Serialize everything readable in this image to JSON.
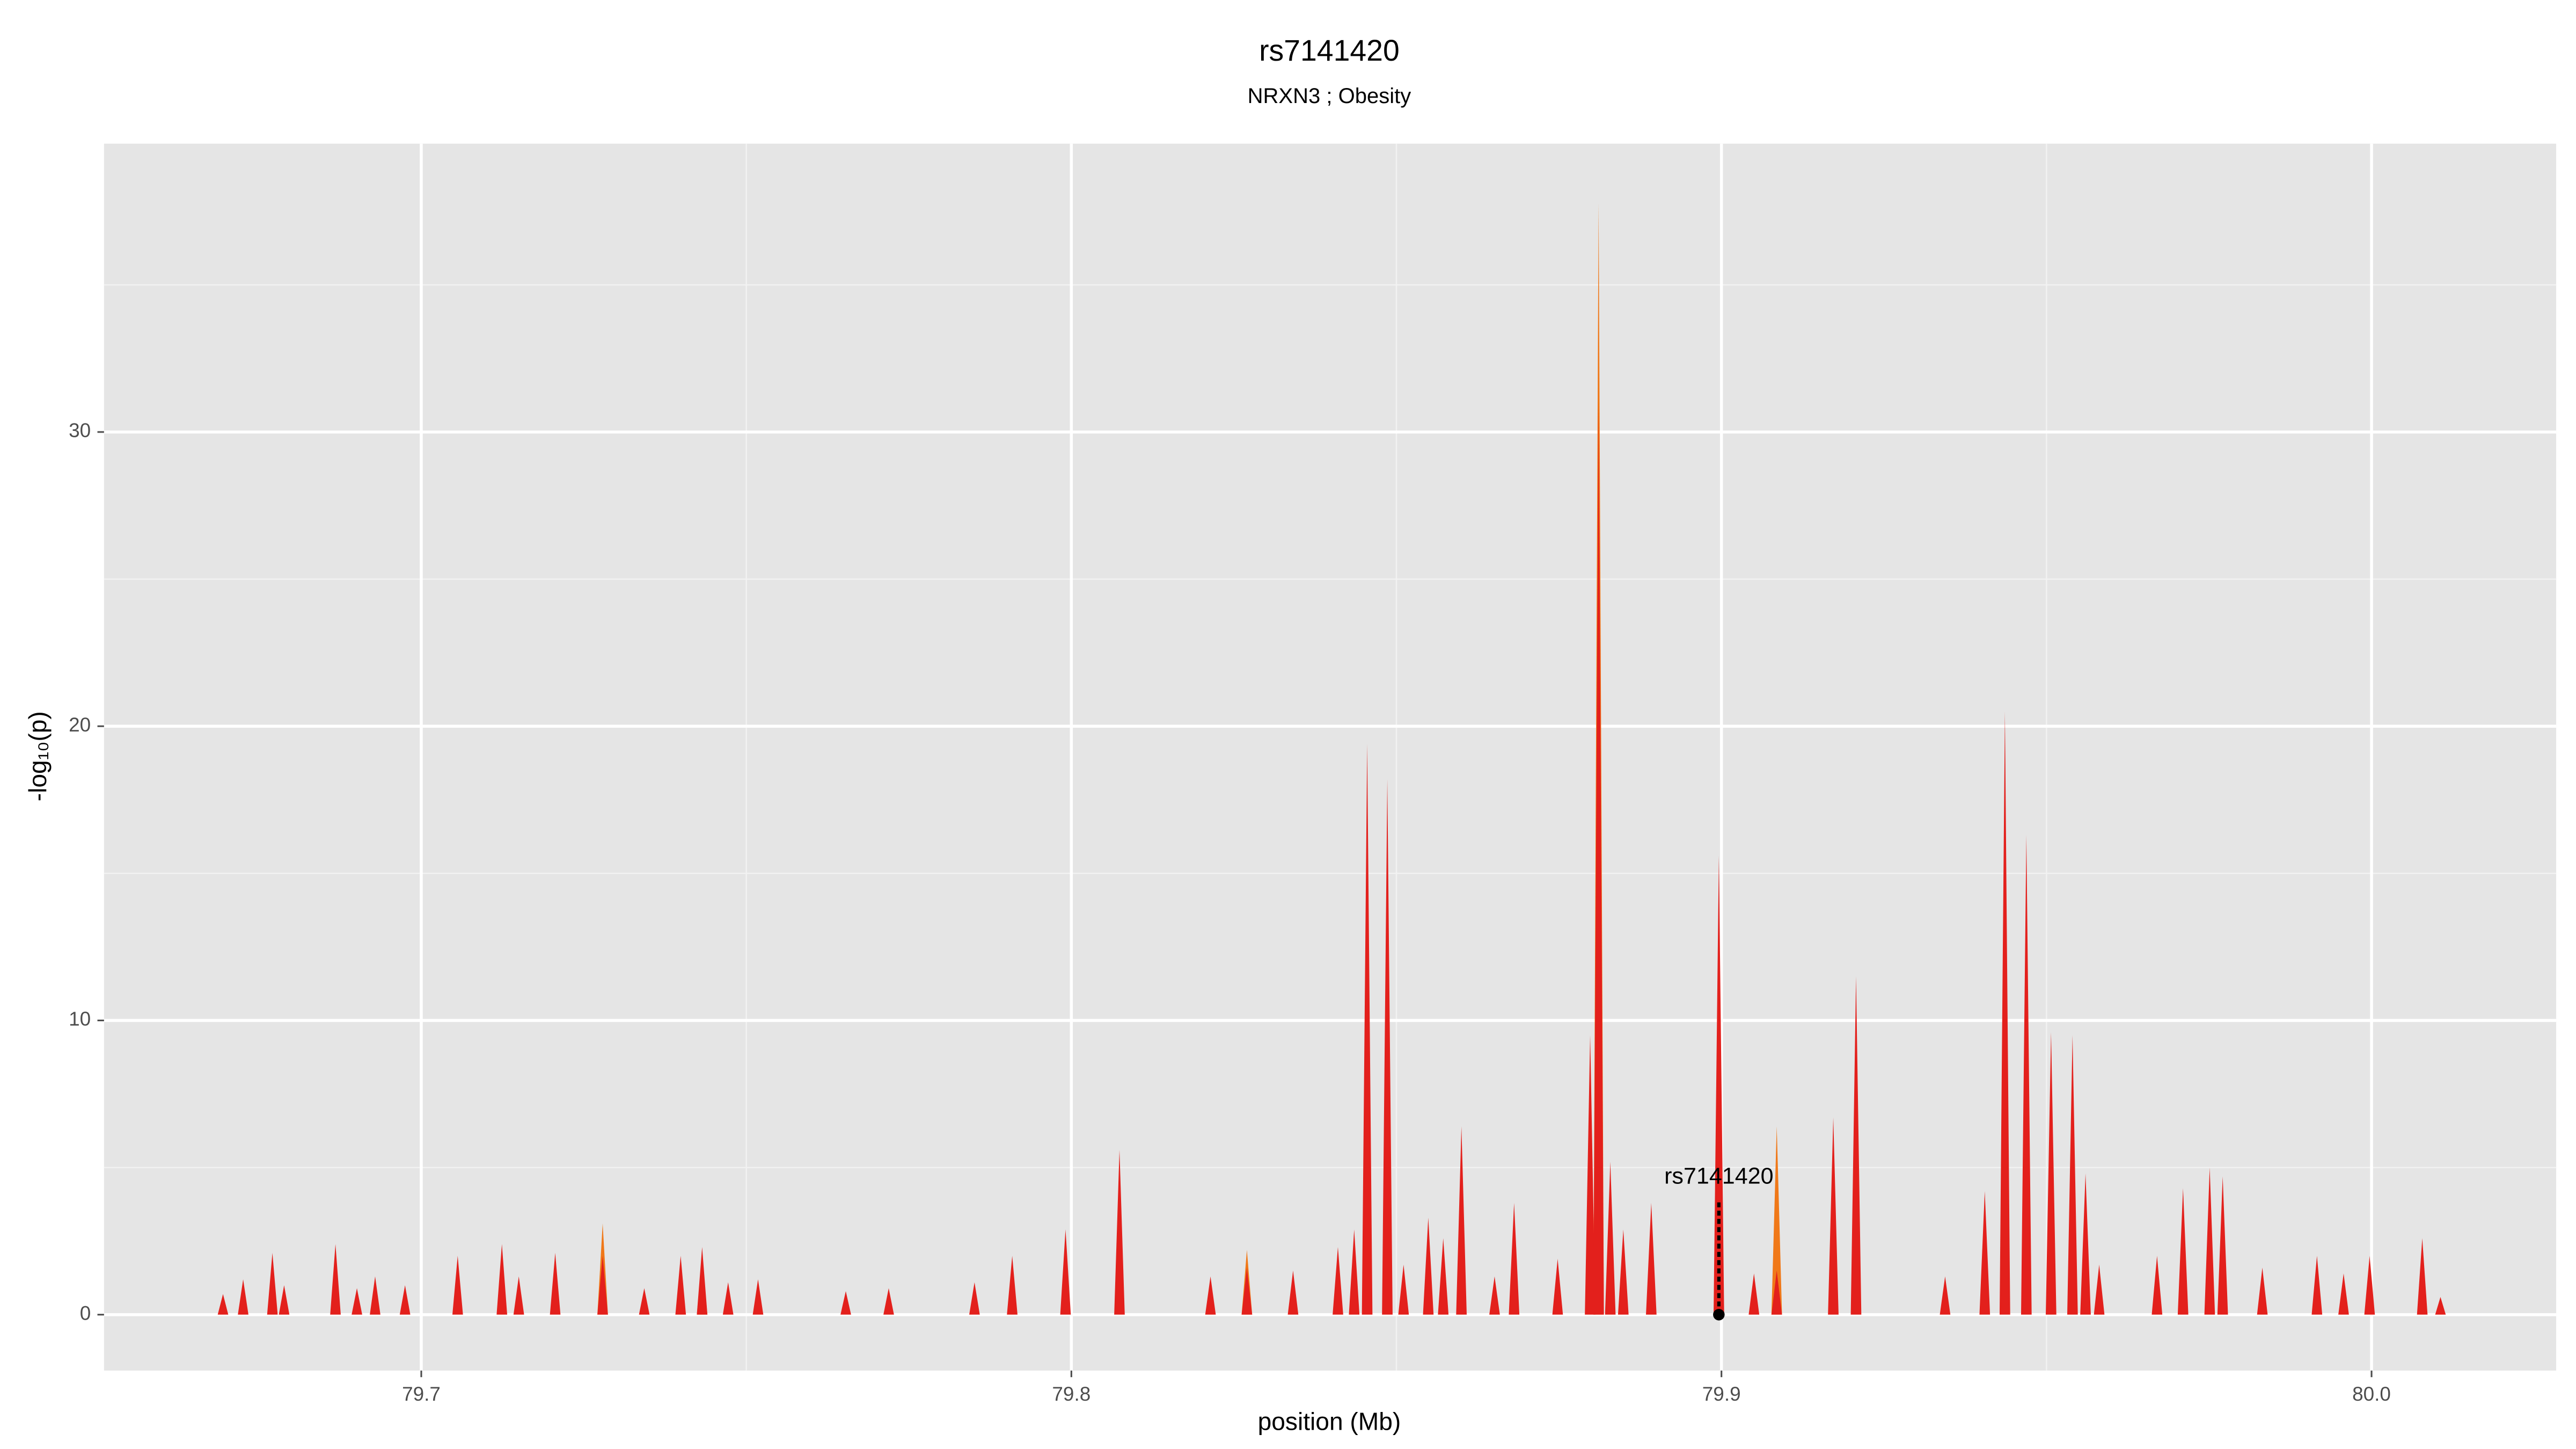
{
  "chart_data": {
    "type": "spike",
    "title": "rs7141420",
    "subtitle": "NRXN3 ; Obesity",
    "x_label": "position (Mb)",
    "y_label": "-log₁₀(p)",
    "xlim": [
      79.6512,
      80.0284
    ],
    "ylim": [
      -1.9,
      39.8
    ],
    "xticks": [
      79.7,
      79.8,
      79.9,
      {
        "value": 80,
        "label": "80.0"
      }
    ],
    "yticks": [
      0,
      10,
      20,
      30
    ],
    "xminor": [
      79.75,
      79.85,
      79.95
    ],
    "yminor": [
      5,
      15,
      25,
      35
    ],
    "grid": true,
    "series": [
      {
        "color": "#f07818",
        "x": [
          79.7279,
          79.7432,
          79.827,
          79.8811,
          79.9085
        ],
        "values": [
          3.1,
          2.0,
          2.2,
          37.8,
          6.4
        ]
      },
      {
        "color": "#e3201c",
        "x": [
          79.6695,
          79.6726,
          79.6771,
          79.6789,
          79.6868,
          79.6901,
          79.6929,
          79.6975,
          79.7056,
          79.7124,
          79.715,
          79.7206,
          79.7279,
          79.7343,
          79.7399,
          79.7432,
          79.7472,
          79.7518,
          79.7653,
          79.7719,
          79.7851,
          79.7909,
          79.7991,
          79.8074,
          79.8214,
          79.827,
          79.8341,
          79.841,
          79.8435,
          79.8455,
          79.8486,
          79.8511,
          79.8549,
          79.8572,
          79.86,
          79.8651,
          79.8681,
          79.8748,
          79.8798,
          79.8811,
          79.8829,
          79.8849,
          79.8892,
          79.8996,
          79.905,
          79.9085,
          79.9172,
          79.9207,
          79.9344,
          79.9405,
          79.9436,
          79.9469,
          79.9507,
          79.954,
          79.956,
          79.9581,
          79.967,
          79.971,
          79.9751,
          79.9771,
          79.9832,
          79.9916,
          79.9957,
          79.9997,
          80.0078,
          80.0106
        ],
        "values": [
          0.7,
          1.2,
          2.1,
          1.0,
          2.4,
          0.9,
          1.3,
          1.0,
          2.0,
          2.4,
          1.3,
          2.1,
          2.0,
          0.9,
          2.0,
          2.3,
          1.1,
          1.2,
          0.8,
          0.9,
          1.1,
          2.0,
          2.9,
          5.6,
          1.3,
          1.6,
          1.5,
          2.3,
          2.9,
          19.4,
          18.2,
          1.7,
          3.3,
          2.6,
          6.4,
          1.3,
          3.8,
          1.9,
          9.5,
          31,
          5.2,
          2.9,
          3.8,
          15.6,
          1.4,
          1.5,
          6.7,
          11.5,
          1.3,
          4.2,
          20.5,
          16.3,
          9.6,
          9.5,
          4.8,
          1.7,
          2.0,
          4.3,
          5.0,
          4.7,
          1.6,
          2.0,
          1.4,
          2.0,
          2.6,
          0.6
        ]
      }
    ],
    "annotation": {
      "text": "rs7141420",
      "x": 79.8996,
      "y": 0
    }
  }
}
